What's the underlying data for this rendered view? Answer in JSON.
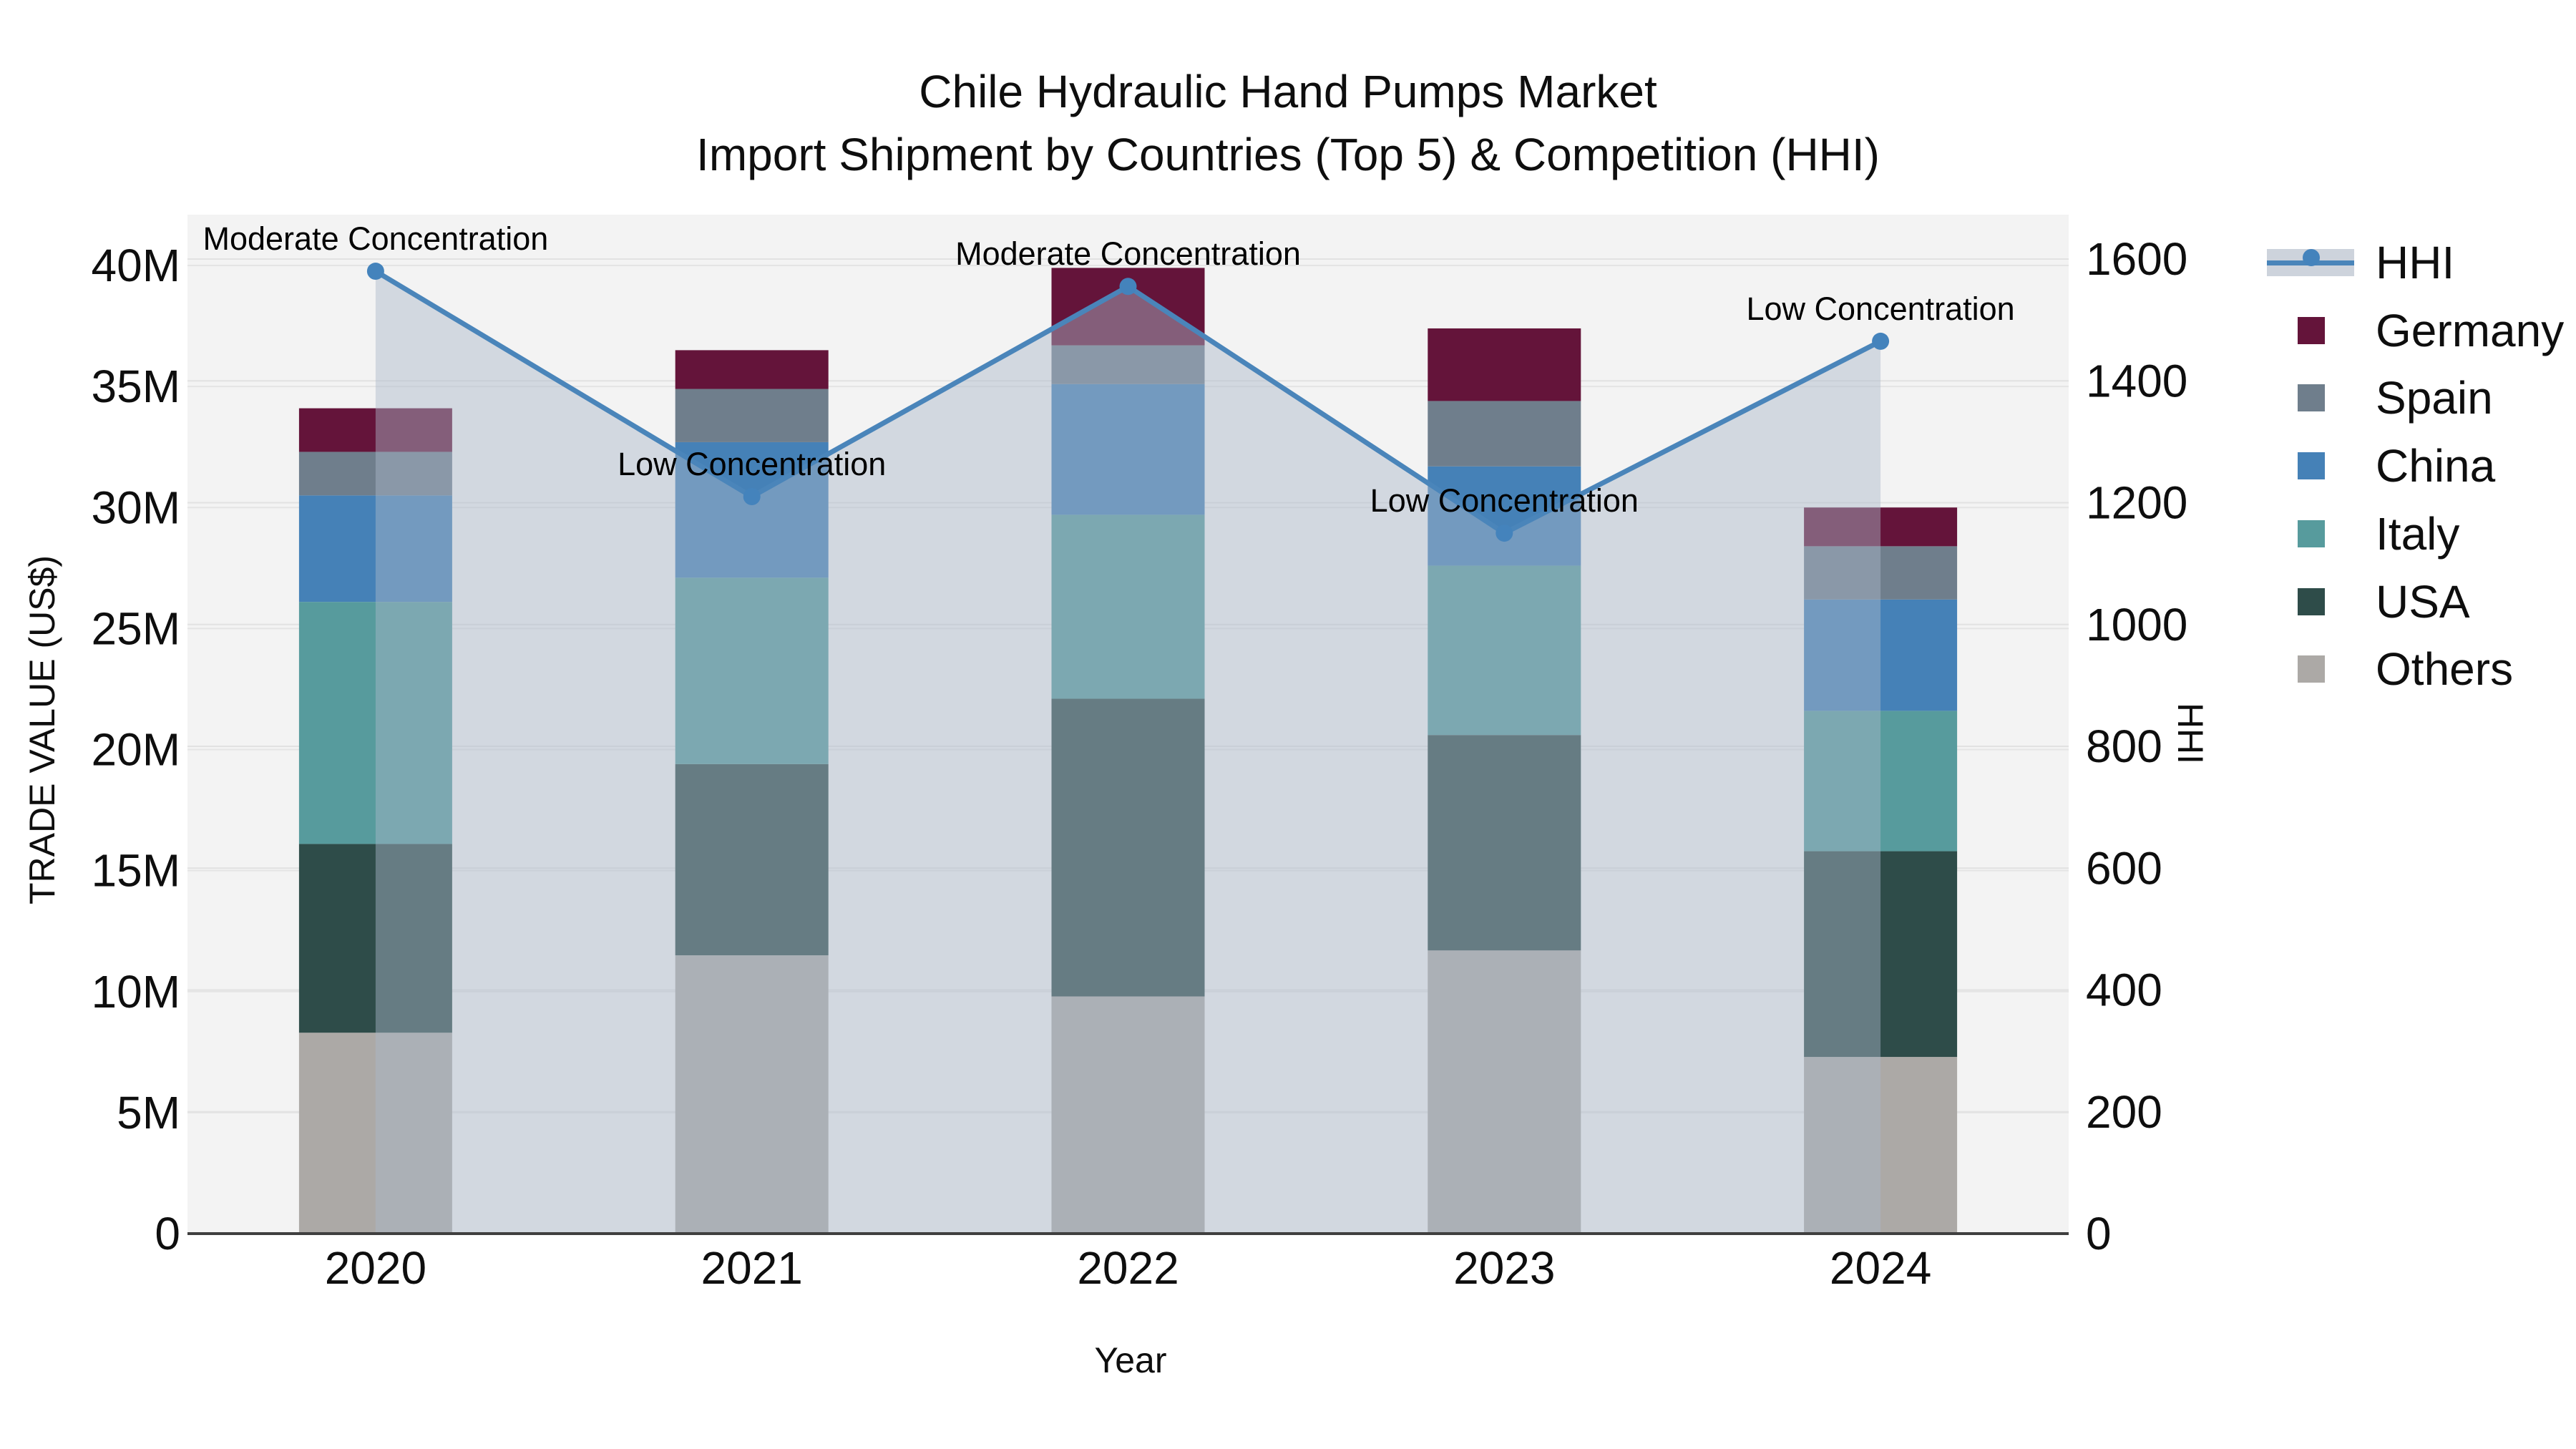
{
  "title": {
    "line1": "Chile Hydraulic Hand Pumps Market",
    "line2": "Import Shipment by Countries (Top 5) & Competition (HHI)"
  },
  "axes": {
    "y_left": {
      "title": "TRADE VALUE (US$)",
      "tick_labels": [
        "0",
        "5M",
        "10M",
        "15M",
        "20M",
        "25M",
        "30M",
        "35M",
        "40M"
      ],
      "tick_values_millions": [
        0,
        5,
        10,
        15,
        20,
        25,
        30,
        35,
        40
      ]
    },
    "y_right": {
      "title": "HHI",
      "tick_labels": [
        "0",
        "200",
        "400",
        "600",
        "800",
        "1000",
        "1200",
        "1400",
        "1600"
      ],
      "tick_values": [
        0,
        200,
        400,
        600,
        800,
        1000,
        1200,
        1400,
        1600
      ]
    },
    "x": {
      "title": "Year"
    }
  },
  "chart_data": {
    "type": "bar",
    "subtype": "stacked-bars-with-dual-axis-line",
    "title": "Chile Hydraulic Hand Pumps Market — Import Shipment by Countries (Top 5) & Competition (HHI)",
    "categories": [
      "2020",
      "2021",
      "2022",
      "2023",
      "2024"
    ],
    "stack_order": "bottom-to-top",
    "series": [
      {
        "name": "Others",
        "color": "#ACA9A6",
        "values_millions": [
          8.3,
          11.5,
          9.8,
          11.7,
          7.3
        ]
      },
      {
        "name": "USA",
        "color": "#2E4C49",
        "values_millions": [
          7.8,
          7.9,
          12.3,
          8.9,
          8.5
        ]
      },
      {
        "name": "Italy",
        "color": "#579B9D",
        "values_millions": [
          10.0,
          7.7,
          7.6,
          7.0,
          5.8
        ]
      },
      {
        "name": "China",
        "color": "#4581B7",
        "values_millions": [
          4.4,
          5.6,
          5.4,
          4.1,
          4.6
        ]
      },
      {
        "name": "Spain",
        "color": "#6F7E8C",
        "values_millions": [
          1.8,
          2.2,
          1.6,
          2.7,
          2.2
        ]
      },
      {
        "name": "Germany",
        "color": "#64143A",
        "values_millions": [
          1.8,
          1.6,
          3.2,
          3.0,
          1.6
        ]
      }
    ],
    "bar_totals_millions": [
      34.1,
      36.5,
      39.9,
      37.4,
      30.0
    ],
    "line_series": {
      "name": "HHI",
      "color": "#4A85BA",
      "marker_color": "#4483BC",
      "area_fill": "rgba(170,183,202,0.45)",
      "values": [
        1580,
        1210,
        1555,
        1150,
        1465
      ]
    },
    "annotations": [
      {
        "category": "2020",
        "text": "Moderate Concentration"
      },
      {
        "category": "2021",
        "text": "Low Concentration"
      },
      {
        "category": "2022",
        "text": "Moderate Concentration"
      },
      {
        "category": "2023",
        "text": "Low Concentration"
      },
      {
        "category": "2024",
        "text": "Low Concentration"
      }
    ],
    "legend_order": [
      "HHI",
      "Germany",
      "Spain",
      "China",
      "Italy",
      "USA",
      "Others"
    ],
    "ylim_left_millions": [
      0,
      40
    ],
    "ylim_right": [
      0,
      1600
    ],
    "grid": true,
    "legend_position": "right",
    "plot_background": "#F3F3F3"
  }
}
